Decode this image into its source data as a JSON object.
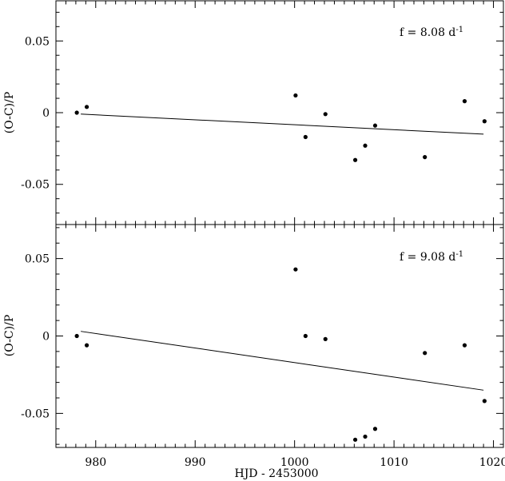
{
  "chart_data": [
    {
      "type": "scatter",
      "panel": "top",
      "annotation": {
        "prefix": "f = 8.08 d",
        "sup": "-1"
      },
      "ylabel": "(O-C)/P",
      "xlim": [
        976,
        1021
      ],
      "ylim": [
        -0.078,
        0.078
      ],
      "yticks": [
        0.05,
        0,
        -0.05
      ],
      "ytick_labels": [
        "0.05",
        "0",
        "-0.05"
      ],
      "grid": false,
      "points": [
        {
          "x": 978.1,
          "y": 0.0
        },
        {
          "x": 979.1,
          "y": 0.004
        },
        {
          "x": 1000.1,
          "y": 0.012
        },
        {
          "x": 1001.1,
          "y": -0.017
        },
        {
          "x": 1003.1,
          "y": -0.001
        },
        {
          "x": 1006.1,
          "y": -0.033
        },
        {
          "x": 1007.1,
          "y": -0.023
        },
        {
          "x": 1008.1,
          "y": -0.009
        },
        {
          "x": 1013.1,
          "y": -0.031
        },
        {
          "x": 1017.1,
          "y": 0.008
        },
        {
          "x": 1019.1,
          "y": -0.006
        }
      ],
      "fit_line": {
        "x": [
          978.5,
          1019.0
        ],
        "y": [
          -0.001,
          -0.015
        ]
      }
    },
    {
      "type": "scatter",
      "panel": "bottom",
      "annotation": {
        "prefix": "f = 9.08 d",
        "sup": "-1"
      },
      "ylabel": "(O-C)/P",
      "xlabel": "HJD - 2453000",
      "xlim": [
        976,
        1021
      ],
      "ylim": [
        -0.072,
        0.072
      ],
      "xticks": [
        980,
        990,
        1000,
        1010,
        1020
      ],
      "xtick_labels": [
        "980",
        "990",
        "1000",
        "1010",
        "1020"
      ],
      "yticks": [
        0.05,
        0,
        -0.05
      ],
      "ytick_labels": [
        "0.05",
        "0",
        "-0.05"
      ],
      "grid": false,
      "points": [
        {
          "x": 978.1,
          "y": 0.0
        },
        {
          "x": 979.1,
          "y": -0.006
        },
        {
          "x": 1000.1,
          "y": 0.043
        },
        {
          "x": 1001.1,
          "y": 0.0
        },
        {
          "x": 1003.1,
          "y": -0.002
        },
        {
          "x": 1006.1,
          "y": -0.067
        },
        {
          "x": 1007.1,
          "y": -0.065
        },
        {
          "x": 1008.1,
          "y": -0.06
        },
        {
          "x": 1013.1,
          "y": -0.011
        },
        {
          "x": 1017.1,
          "y": -0.006
        },
        {
          "x": 1019.1,
          "y": -0.042
        }
      ],
      "fit_line": {
        "x": [
          978.5,
          1019.0
        ],
        "y": [
          0.003,
          -0.035
        ]
      }
    }
  ]
}
